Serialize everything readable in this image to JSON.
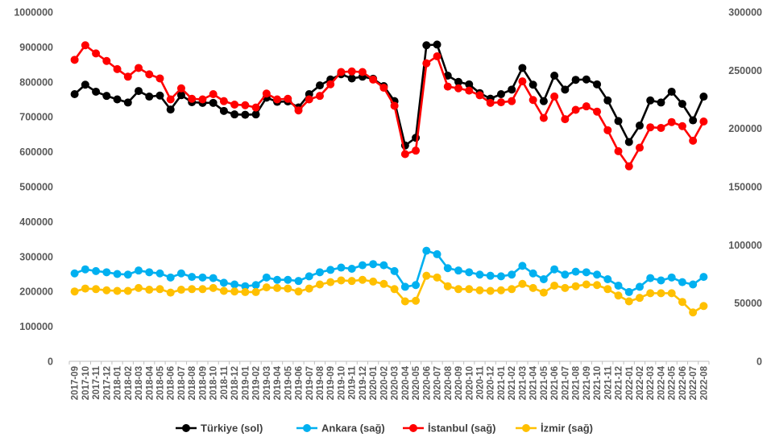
{
  "chart_data": {
    "type": "line",
    "title": "",
    "xlabel": "",
    "ylabel": "",
    "y_left": {
      "lim": [
        0,
        1000000
      ],
      "ticks": [
        0,
        100000,
        200000,
        300000,
        400000,
        500000,
        600000,
        700000,
        800000,
        900000,
        1000000
      ],
      "tick_labels": [
        "0",
        "100000",
        "200000",
        "300000",
        "400000",
        "500000",
        "600000",
        "700000",
        "800000",
        "900000",
        "1000000"
      ]
    },
    "y_right": {
      "lim": [
        0,
        300000
      ],
      "ticks": [
        0,
        50000,
        100000,
        150000,
        200000,
        250000,
        300000
      ],
      "tick_labels": [
        "0",
        "50000",
        "100000",
        "150000",
        "200000",
        "250000",
        "300000"
      ]
    },
    "grid": false,
    "legend_position": "bottom",
    "categories": [
      "2017-09",
      "2017-10",
      "2017-11",
      "2017-12",
      "2018-01",
      "2018-02",
      "2018-03",
      "2018-04",
      "2018-05",
      "2018-06",
      "2018-07",
      "2018-08",
      "2018-09",
      "2018-10",
      "2018-11",
      "2018-12",
      "2019-01",
      "2019-02",
      "2019-03",
      "2019-04",
      "2019-05",
      "2019-06",
      "2019-07",
      "2019-08",
      "2019-09",
      "2019-10",
      "2019-11",
      "2019-12",
      "2020-01",
      "2020-02",
      "2020-03",
      "2020-04",
      "2020-05",
      "2020-06",
      "2020-07",
      "2020-08",
      "2020-09",
      "2020-10",
      "2020-11",
      "2020-12",
      "2021-01",
      "2021-02",
      "2021-03",
      "2021-04",
      "2021-05",
      "2021-06",
      "2021-07",
      "2021-08",
      "2021-09",
      "2021-10",
      "2021-11",
      "2021-12",
      "2022-01",
      "2022-02",
      "2022-03",
      "2022-04",
      "2022-05",
      "2022-06",
      "2022-07",
      "2022-08"
    ],
    "x_tick_labels": [
      "2017-09",
      "2017-11",
      "2018-01",
      "2018-03",
      "2018-05",
      "2018-07",
      "2018-09",
      "2018-11",
      "2019-01",
      "2019-03",
      "2019-05",
      "2019-07",
      "2019-09",
      "2019-11",
      "2020-01",
      "2020-03",
      "2020-05",
      "2020-07",
      "2020-09",
      "2020-11",
      "2021-01",
      "2021-03",
      "2021-05",
      "2021-07",
      "2021-09",
      "2021-11",
      "2022-01",
      "2022-03",
      "2022-05",
      "2022-07"
    ],
    "x_tick_labels_secondary": [
      "2017-10",
      "2017-12",
      "2018-02",
      "2018-04",
      "2018-06",
      "2018-08",
      "2018-10",
      "2018-12",
      "2019-02",
      "2019-04",
      "2019-06",
      "2019-08",
      "2019-10",
      "2019-12",
      "2020-02",
      "2020-04",
      "2020-06",
      "2020-08",
      "2020-10",
      "2020-12",
      "2021-02",
      "2021-04",
      "2021-06",
      "2021-08",
      "2021-10",
      "2021-12",
      "2022-02",
      "2022-04",
      "2022-06",
      "2022-08"
    ],
    "series": [
      {
        "name": "Türkiye (sol)",
        "axis": "left",
        "color": "#000000",
        "values": [
          765000,
          792000,
          772000,
          760000,
          750000,
          741000,
          774000,
          758000,
          761000,
          721000,
          762000,
          742000,
          740000,
          740000,
          717000,
          707000,
          706000,
          707000,
          755000,
          743000,
          744000,
          727000,
          765000,
          790000,
          807000,
          822000,
          810000,
          815000,
          809000,
          788000,
          745000,
          618000,
          640000,
          905000,
          907000,
          818000,
          800000,
          793000,
          768000,
          752000,
          765000,
          778000,
          840000,
          792000,
          745000,
          818000,
          778000,
          806000,
          807000,
          793000,
          747000,
          688000,
          628000,
          675000,
          747000,
          741000,
          772000,
          737000,
          690000,
          758000
        ]
      },
      {
        "name": "Ankara (sağ)",
        "axis": "right",
        "color": "#00b0f0",
        "values": [
          75500,
          79000,
          77500,
          76500,
          75000,
          74500,
          78000,
          76500,
          75500,
          72000,
          75500,
          72500,
          72000,
          71500,
          67500,
          66000,
          64500,
          65500,
          72000,
          70000,
          70000,
          69000,
          73000,
          76500,
          78500,
          80500,
          79500,
          82500,
          83500,
          82500,
          77500,
          64000,
          65500,
          95000,
          92000,
          80000,
          78000,
          76500,
          74500,
          73500,
          73000,
          74500,
          82000,
          75500,
          70500,
          79000,
          74500,
          77000,
          76500,
          74500,
          70500,
          65000,
          59500,
          64000,
          71500,
          69500,
          72000,
          68000,
          66000,
          72500
        ]
      },
      {
        "name": "İstanbul (sağ)",
        "axis": "right",
        "color": "#ff0000",
        "values": [
          259000,
          271500,
          264500,
          258000,
          251000,
          244500,
          252000,
          246500,
          243000,
          225000,
          234500,
          225500,
          225000,
          229500,
          223500,
          220500,
          220000,
          218000,
          230000,
          225000,
          225500,
          215500,
          225000,
          228000,
          238000,
          248500,
          249000,
          248500,
          242000,
          235000,
          219500,
          178000,
          181000,
          256000,
          262000,
          236000,
          234500,
          232500,
          228500,
          222000,
          222500,
          223500,
          240500,
          224500,
          209000,
          227500,
          208000,
          216000,
          219000,
          214500,
          198500,
          180500,
          167500,
          183500,
          201000,
          200500,
          205500,
          202000,
          189500,
          206000
        ]
      },
      {
        "name": "İzmir (sağ)",
        "axis": "right",
        "color": "#ffc000",
        "values": [
          60000,
          62500,
          62000,
          61000,
          60500,
          60500,
          63000,
          61500,
          62000,
          59000,
          61500,
          62000,
          62000,
          63000,
          60500,
          60000,
          59500,
          59500,
          63500,
          63000,
          62500,
          60000,
          62500,
          66000,
          68000,
          69500,
          69000,
          70000,
          68500,
          66500,
          62000,
          51500,
          52000,
          73500,
          72000,
          64500,
          62000,
          62000,
          61000,
          60500,
          61000,
          62000,
          66500,
          63000,
          59000,
          65000,
          63000,
          64500,
          66000,
          65500,
          62000,
          56500,
          51500,
          54500,
          58500,
          58500,
          58500,
          51000,
          42000,
          47500
        ]
      }
    ]
  }
}
